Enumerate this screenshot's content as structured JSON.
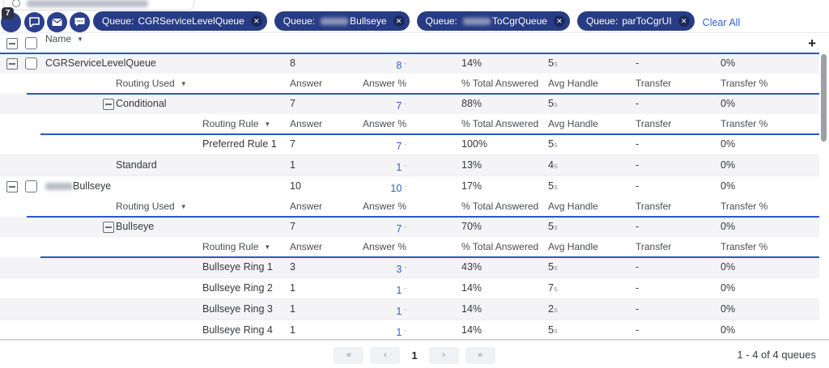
{
  "colors": {
    "chip_navy": "#283c85",
    "accent_line": "#2857c9",
    "link_blue": "#2e62d9",
    "value_link": "#2e5fc4",
    "shaded_row": "#f4f4f6"
  },
  "filter_bar": {
    "notification_badge": "7",
    "icons": [
      "notification-icon",
      "chat-icon",
      "email-icon",
      "sms-icon"
    ],
    "chips": [
      {
        "prefix": "Queue:",
        "name": "CGRServiceLevelQueue",
        "redacted": false,
        "close_label": "✕"
      },
      {
        "prefix": "Queue:",
        "name": "Bullseye",
        "redacted": true,
        "close_label": "✕"
      },
      {
        "prefix": "Queue:",
        "name": "ToCgrQueue",
        "redacted": true,
        "close_label": "✕"
      },
      {
        "prefix": "Queue:",
        "name": "parToCgrUI",
        "redacted": false,
        "close_label": "✕"
      }
    ],
    "clear_all_label": "Clear All"
  },
  "table": {
    "name_column": "Name",
    "value_columns": [
      "Answer",
      "Answer %",
      "% Total Answered",
      "Avg Handle",
      "Transfer",
      "Transfer %"
    ],
    "add_column_label": "+",
    "answer_pct_marker": "-",
    "avg_handle_unit": "s",
    "rows": [
      {
        "type": "data",
        "level": 1,
        "expand": true,
        "checkbox": true,
        "redacted": false,
        "name": "CGRServiceLevelQueue",
        "answer": "8",
        "answer_pct": "8",
        "total_answered": "14%",
        "avg_handle": "5",
        "transfer": "-",
        "transfer_pct": "0%",
        "shaded": true
      },
      {
        "type": "subheader",
        "level": 2,
        "label": "Routing Used",
        "shaded": false
      },
      {
        "type": "data",
        "level": 2,
        "expand": true,
        "checkbox": false,
        "redacted": false,
        "name": "Conditional",
        "answer": "7",
        "answer_pct": "7",
        "total_answered": "88%",
        "avg_handle": "5",
        "transfer": "-",
        "transfer_pct": "0%",
        "shaded": true
      },
      {
        "type": "subheader",
        "level": 3,
        "label": "Routing Rule",
        "shaded": false
      },
      {
        "type": "data",
        "level": 3,
        "expand": false,
        "checkbox": false,
        "redacted": false,
        "name": "Preferred Rule 1",
        "answer": "7",
        "answer_pct": "7",
        "total_answered": "100%",
        "avg_handle": "5",
        "transfer": "-",
        "transfer_pct": "0%",
        "shaded": false
      },
      {
        "type": "data",
        "level": 2,
        "expand": false,
        "checkbox": false,
        "redacted": false,
        "name": "Standard",
        "answer": "1",
        "answer_pct": "1",
        "total_answered": "13%",
        "avg_handle": "4",
        "transfer": "-",
        "transfer_pct": "0%",
        "shaded": true
      },
      {
        "type": "data",
        "level": 1,
        "expand": true,
        "checkbox": true,
        "redacted": true,
        "name": "Bullseye",
        "answer": "10",
        "answer_pct": "10",
        "total_answered": "17%",
        "avg_handle": "5",
        "transfer": "-",
        "transfer_pct": "0%",
        "shaded": false
      },
      {
        "type": "subheader",
        "level": 2,
        "label": "Routing Used",
        "shaded": false
      },
      {
        "type": "data",
        "level": 2,
        "expand": true,
        "checkbox": false,
        "redacted": false,
        "name": "Bullseye",
        "answer": "7",
        "answer_pct": "7",
        "total_answered": "70%",
        "avg_handle": "5",
        "transfer": "-",
        "transfer_pct": "0%",
        "shaded": true
      },
      {
        "type": "subheader",
        "level": 3,
        "label": "Routing Rule",
        "shaded": false
      },
      {
        "type": "data",
        "level": 3,
        "expand": false,
        "checkbox": false,
        "redacted": false,
        "name": "Bullseye Ring 1",
        "answer": "3",
        "answer_pct": "3",
        "total_answered": "43%",
        "avg_handle": "5",
        "transfer": "-",
        "transfer_pct": "0%",
        "shaded": true
      },
      {
        "type": "data",
        "level": 3,
        "expand": false,
        "checkbox": false,
        "redacted": false,
        "name": "Bullseye Ring 2",
        "answer": "1",
        "answer_pct": "1",
        "total_answered": "14%",
        "avg_handle": "7",
        "transfer": "-",
        "transfer_pct": "0%",
        "shaded": false
      },
      {
        "type": "data",
        "level": 3,
        "expand": false,
        "checkbox": false,
        "redacted": false,
        "name": "Bullseye Ring 3",
        "answer": "1",
        "answer_pct": "1",
        "total_answered": "14%",
        "avg_handle": "2",
        "transfer": "-",
        "transfer_pct": "0%",
        "shaded": true
      },
      {
        "type": "data",
        "level": 3,
        "expand": false,
        "checkbox": false,
        "redacted": false,
        "name": "Bullseye Ring 4",
        "answer": "1",
        "answer_pct": "1",
        "total_answered": "14%",
        "avg_handle": "5",
        "transfer": "-",
        "transfer_pct": "0%",
        "shaded": false
      }
    ]
  },
  "pagination": {
    "first_label": "«",
    "prev_label": "‹",
    "current_page": "1",
    "next_label": "›",
    "last_label": "»",
    "summary": "1 - 4 of 4 queues"
  }
}
